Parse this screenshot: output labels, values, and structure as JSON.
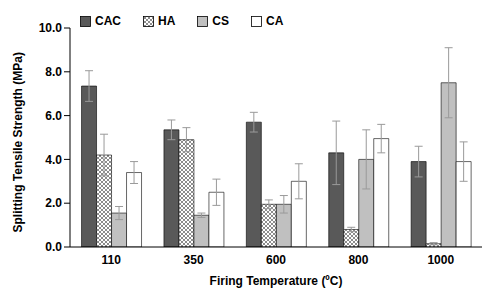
{
  "chart_data": {
    "type": "bar",
    "x_label": "Firing Temperature (ºC)",
    "y_label": "Splitting Tensile Strength (MPa)",
    "categories": [
      110,
      350,
      600,
      800,
      1000
    ],
    "ylim": [
      0,
      10
    ],
    "yticks": [
      {
        "value": 0,
        "label": "0.0"
      },
      {
        "value": 2,
        "label": "2.0"
      },
      {
        "value": 4,
        "label": "4.0"
      },
      {
        "value": 6,
        "label": "6.0"
      },
      {
        "value": 8,
        "label": "8.0"
      },
      {
        "value": 10,
        "label": "10.0"
      }
    ],
    "grid": false,
    "legend": "top-left",
    "series": [
      {
        "name": "CAC",
        "color": "#595959",
        "values": [
          7.35,
          5.35,
          5.7,
          4.3,
          3.9
        ],
        "errors": [
          0.7,
          0.45,
          0.45,
          1.45,
          0.7
        ]
      },
      {
        "name": "HA",
        "color": "#808080",
        "marker": "crosshatch",
        "values": [
          4.2,
          4.9,
          1.95,
          0.8,
          0.15
        ],
        "errors": [
          0.95,
          0.55,
          0.2,
          0.1,
          0.05
        ]
      },
      {
        "name": "CS",
        "color": "#c0c0c0",
        "values": [
          1.55,
          1.45,
          1.95,
          4.0,
          7.5
        ],
        "errors": [
          0.3,
          0.1,
          0.4,
          1.35,
          1.6
        ]
      },
      {
        "name": "CA",
        "color": "#ffffff",
        "values": [
          3.4,
          2.5,
          3.0,
          4.95,
          3.9
        ],
        "errors": [
          0.5,
          0.6,
          0.8,
          0.65,
          0.9
        ]
      }
    ]
  }
}
